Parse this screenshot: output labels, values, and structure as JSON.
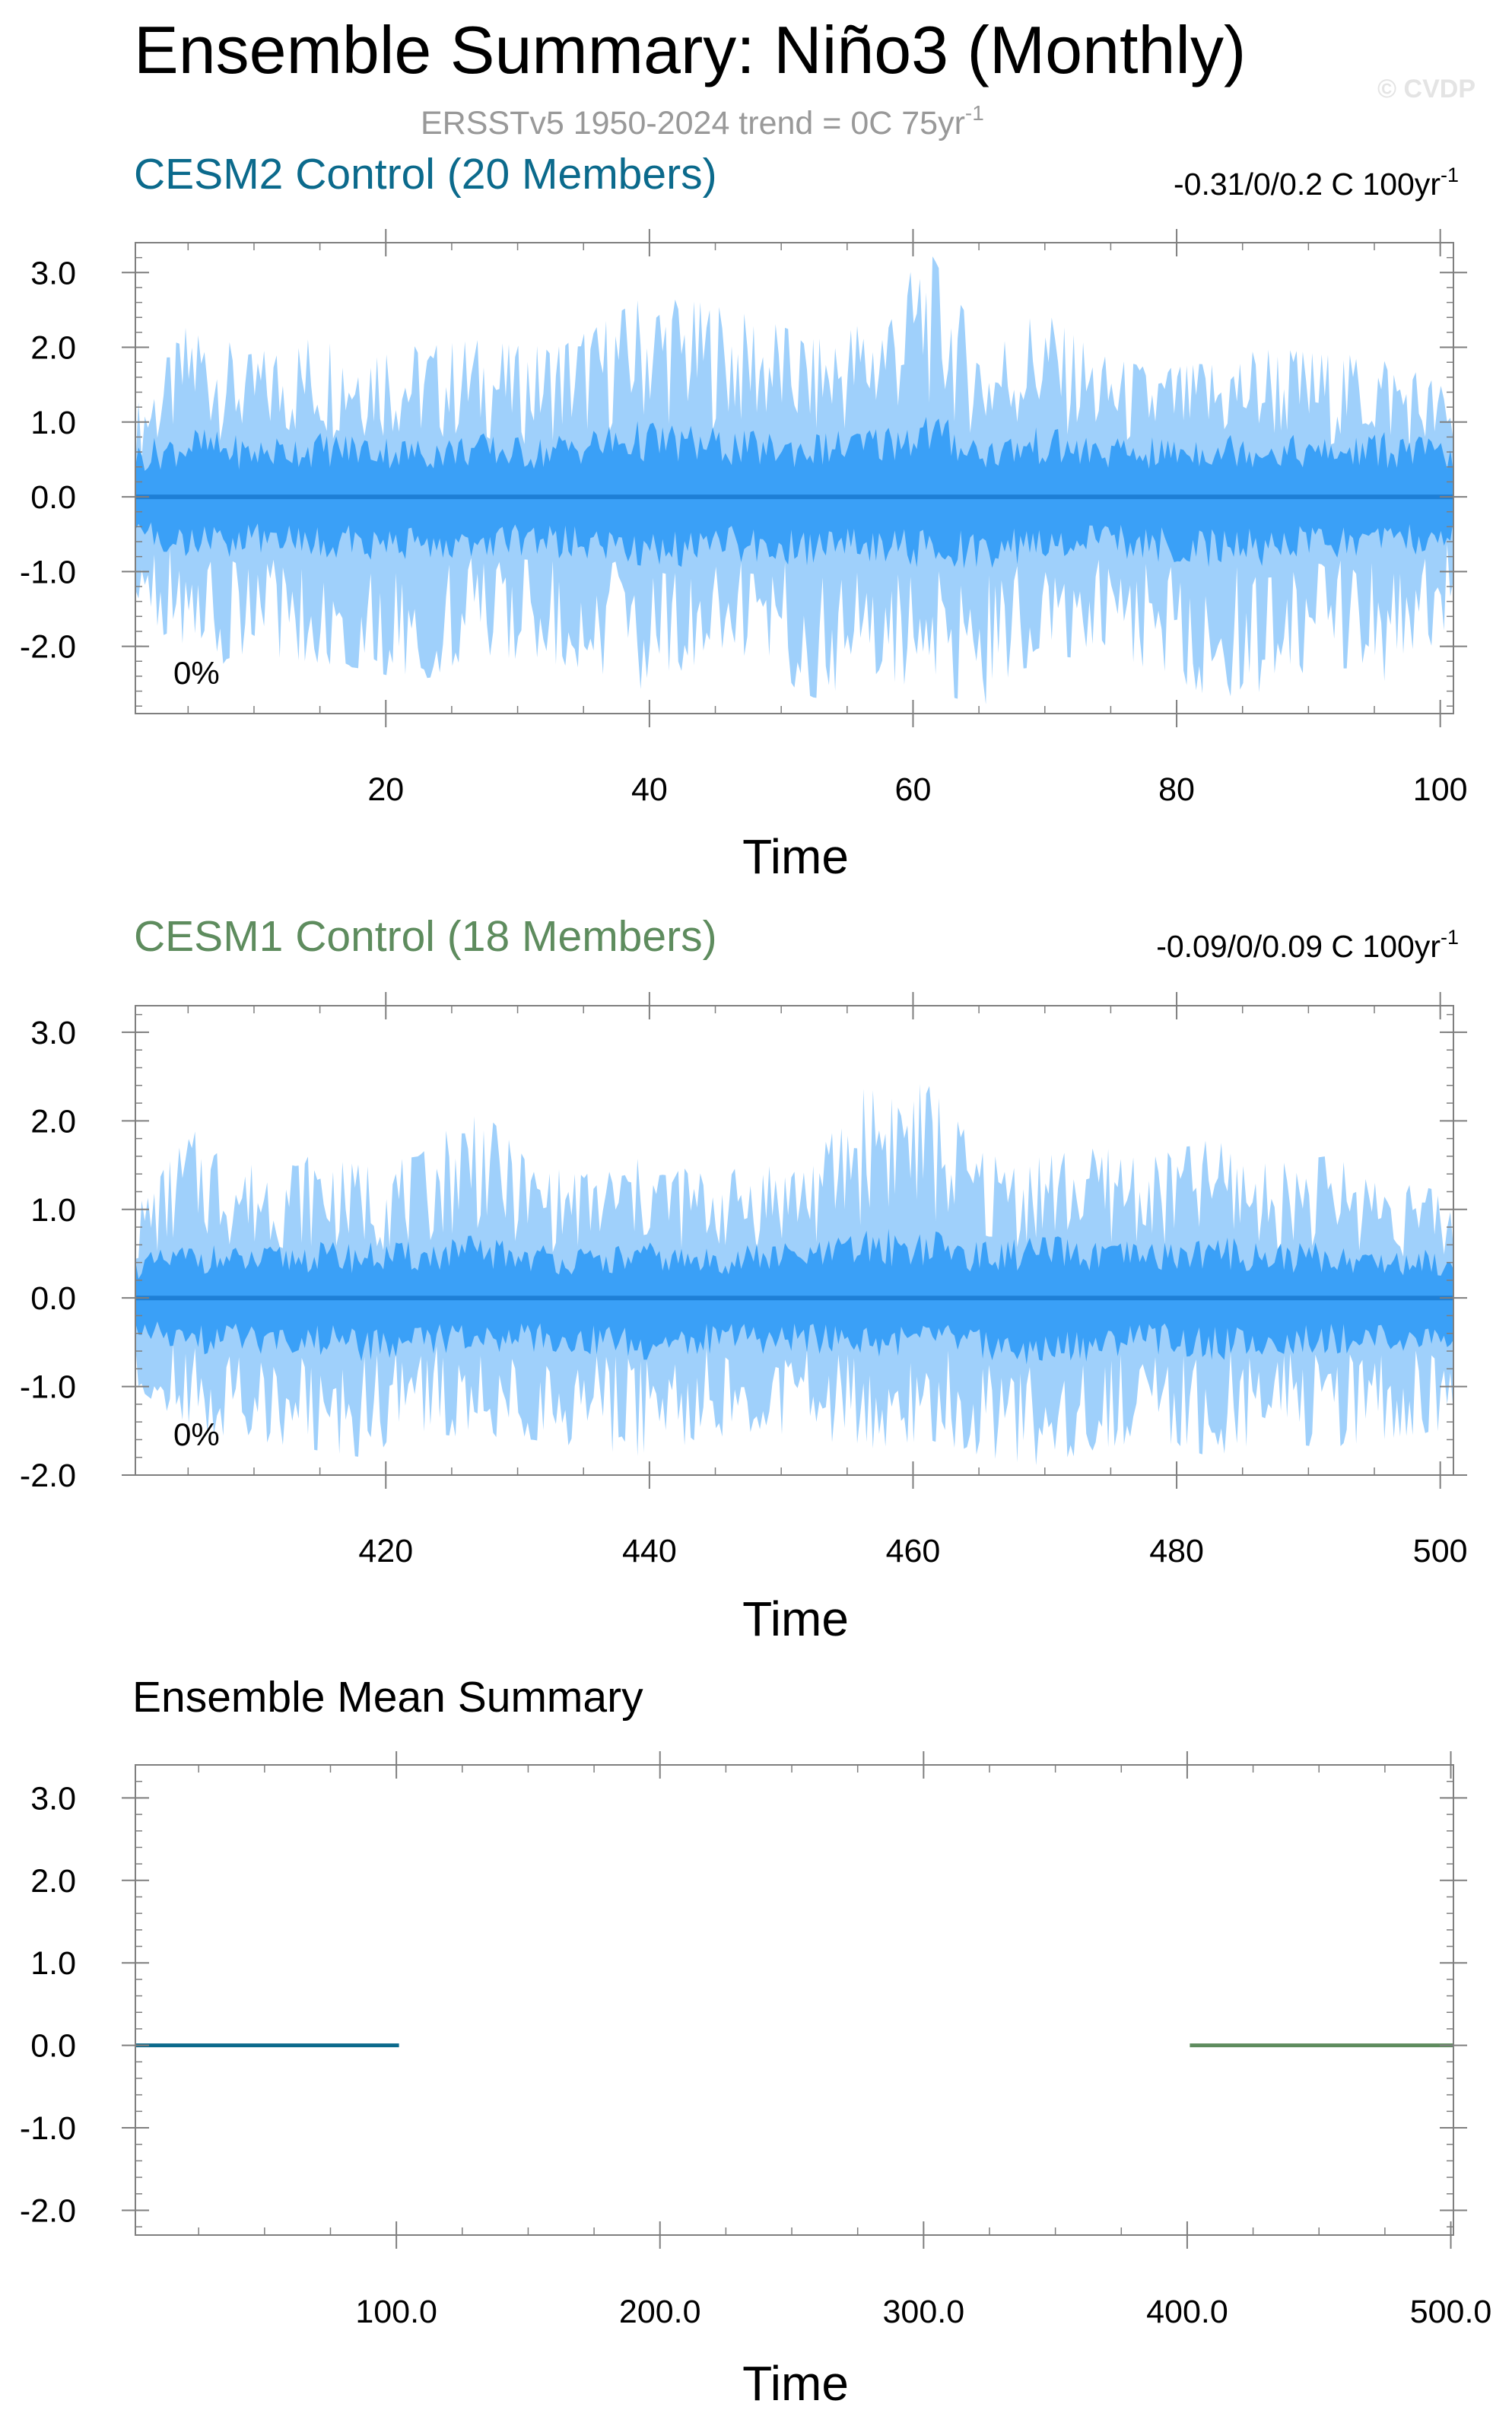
{
  "header": {
    "title": "Ensemble Summary: Niño3 (Monthly)",
    "subtitle": "ERSSTv5 1950-2024 trend = 0C 75yr",
    "subtitle_sup": "-1",
    "watermark": "© CVDP"
  },
  "colors": {
    "cesm2": "#0b6a8c",
    "cesm1": "#5e8c5e",
    "band_outer": "#9fd0fb",
    "band_inner": "#3aa0f7",
    "mean_line": "#1e7fd6",
    "frame": "#7f7f7f"
  },
  "chart_data": [
    {
      "type": "area",
      "title": "CESM2 Control (20 Members)",
      "right_label": "-0.31/0/0.2 C 100yr",
      "right_label_sup": "-1",
      "percent_label": "0%",
      "xlabel": "Time",
      "ylabel": "",
      "xlim": [
        1,
        101
      ],
      "ylim": [
        -2.9,
        3.4
      ],
      "x_ticks": [
        20,
        40,
        60,
        80,
        100
      ],
      "x_tick_labels": [
        "20",
        "40",
        "60",
        "80",
        "100"
      ],
      "y_ticks": [
        3.0,
        2.0,
        1.0,
        0.0,
        -1.0,
        -2.0
      ],
      "y_tick_labels": [
        "3.0",
        "2.0",
        "1.0",
        "0.0",
        "-1.0",
        "-2.0"
      ],
      "series": [
        {
          "role": "max_min_envelope",
          "x": [
            1,
            5.3,
            9.6,
            13.9,
            18.2,
            22.5,
            26.8,
            31.1,
            35.4,
            39.7,
            44,
            48.3,
            52.6,
            56.9,
            61.2,
            65.5,
            69.8,
            74.1,
            78.4,
            82.7,
            87,
            91.3,
            95.6,
            100,
            101
          ],
          "upper": [
            1.2,
            2.4,
            1.9,
            2.1,
            2.2,
            2.0,
            2.1,
            2.0,
            2.2,
            2.7,
            2.6,
            2.4,
            2.1,
            2.4,
            3.3,
            2.0,
            2.5,
            1.9,
            1.7,
            1.8,
            2.0,
            1.9,
            1.9,
            1.5,
            1.2
          ],
          "lower": [
            -1.3,
            -2.4,
            -2.1,
            -2.2,
            -2.3,
            -2.5,
            -2.1,
            -2.2,
            -2.3,
            -2.6,
            -2.2,
            -2.3,
            -2.7,
            -2.4,
            -2.6,
            -2.8,
            -2.1,
            -2.2,
            -2.3,
            -2.7,
            -2.6,
            -2.2,
            -2.5,
            -1.9,
            -1.5
          ]
        },
        {
          "role": "percentile_band",
          "x": [
            1,
            5.3,
            9.6,
            13.9,
            18.2,
            22.5,
            26.8,
            31.1,
            35.4,
            39.7,
            44,
            48.3,
            52.6,
            56.9,
            61.2,
            65.5,
            69.8,
            74.1,
            78.4,
            82.7,
            87,
            91.3,
            95.6,
            100,
            101
          ],
          "upper": [
            0.9,
            1.2,
            1.0,
            1.1,
            1.1,
            1.0,
            1.1,
            1.0,
            1.2,
            1.3,
            1.2,
            1.1,
            1.1,
            1.2,
            1.5,
            1.0,
            1.2,
            1.0,
            1.0,
            1.1,
            1.1,
            1.0,
            1.1,
            1.0,
            0.8
          ],
          "lower": [
            -0.8,
            -1.1,
            -1.0,
            -1.0,
            -1.1,
            -1.1,
            -1.0,
            -1.0,
            -1.1,
            -1.3,
            -1.1,
            -1.1,
            -1.3,
            -1.1,
            -1.2,
            -1.3,
            -1.0,
            -1.0,
            -1.1,
            -1.2,
            -1.2,
            -1.0,
            -1.1,
            -0.9,
            -0.8
          ]
        },
        {
          "role": "ensemble_mean",
          "x": [
            1,
            101
          ],
          "y": [
            0.0,
            0.0
          ]
        }
      ]
    },
    {
      "type": "area",
      "title": "CESM1 Control (18 Members)",
      "right_label": "-0.09/0/0.09 C 100yr",
      "right_label_sup": "-1",
      "percent_label": "0%",
      "xlabel": "Time",
      "ylabel": "",
      "xlim": [
        401,
        501
      ],
      "ylim": [
        -2.0,
        3.3
      ],
      "x_ticks": [
        420,
        440,
        460,
        480,
        500
      ],
      "x_tick_labels": [
        "420",
        "440",
        "460",
        "480",
        "500"
      ],
      "y_ticks": [
        3.0,
        2.0,
        1.0,
        0.0,
        -1.0,
        -2.0
      ],
      "y_tick_labels": [
        "3.0",
        "2.0",
        "1.0",
        "0.0",
        "-1.0",
        "-2.0"
      ],
      "series": [
        {
          "role": "max_min_envelope",
          "x": [
            401,
            405.3,
            409.6,
            413.9,
            418.2,
            422.5,
            426.8,
            431.1,
            435.4,
            439.7,
            444,
            448.3,
            452.6,
            456.9,
            461.2,
            465.5,
            469.8,
            474.1,
            478.4,
            482.7,
            487,
            491.3,
            495.6,
            500,
            501
          ],
          "upper": [
            1.0,
            1.9,
            1.5,
            1.6,
            1.5,
            1.6,
            2.2,
            1.5,
            1.4,
            1.6,
            1.4,
            1.5,
            1.6,
            2.5,
            2.4,
            1.6,
            1.6,
            1.7,
            1.6,
            1.8,
            1.5,
            1.6,
            1.4,
            1.2,
            1.0
          ],
          "lower": [
            -1.0,
            -1.5,
            -1.6,
            -1.7,
            -1.8,
            -1.5,
            -1.6,
            -1.6,
            -1.7,
            -1.8,
            -1.6,
            -1.5,
            -1.6,
            -1.7,
            -1.6,
            -1.8,
            -1.9,
            -1.7,
            -1.6,
            -1.8,
            -1.6,
            -1.7,
            -1.6,
            -1.5,
            -1.3
          ]
        },
        {
          "role": "percentile_band",
          "x": [
            401,
            405.3,
            409.6,
            413.9,
            418.2,
            422.5,
            426.8,
            431.1,
            435.4,
            439.7,
            444,
            448.3,
            452.6,
            456.9,
            461.2,
            465.5,
            469.8,
            474.1,
            478.4,
            482.7,
            487,
            491.3,
            495.6,
            500,
            501
          ],
          "upper": [
            0.6,
            0.8,
            0.7,
            0.8,
            0.8,
            0.8,
            0.9,
            0.8,
            0.7,
            0.8,
            0.7,
            0.8,
            0.8,
            1.0,
            1.0,
            0.8,
            0.9,
            0.8,
            0.8,
            0.9,
            0.8,
            0.8,
            0.7,
            0.7,
            0.6
          ],
          "lower": [
            -0.6,
            -0.8,
            -0.8,
            -0.8,
            -0.9,
            -0.8,
            -0.8,
            -0.8,
            -0.8,
            -0.9,
            -0.8,
            -0.8,
            -0.8,
            -0.9,
            -0.8,
            -0.9,
            -1.0,
            -0.9,
            -0.8,
            -0.9,
            -0.8,
            -0.8,
            -0.8,
            -0.7,
            -0.7
          ]
        },
        {
          "role": "ensemble_mean",
          "x": [
            401,
            501
          ],
          "y": [
            0.0,
            0.0
          ]
        }
      ]
    },
    {
      "type": "line",
      "title": "Ensemble Mean Summary",
      "xlabel": "Time",
      "ylabel": "",
      "xlim": [
        1,
        501
      ],
      "ylim": [
        -2.3,
        3.4
      ],
      "x_ticks": [
        100,
        200,
        300,
        400,
        500
      ],
      "x_tick_labels": [
        "100.0",
        "200.0",
        "300.0",
        "400.0",
        "500.0"
      ],
      "y_ticks": [
        3.0,
        2.0,
        1.0,
        0.0,
        -1.0,
        -2.0
      ],
      "y_tick_labels": [
        "3.0",
        "2.0",
        "1.0",
        "0.0",
        "-1.0",
        "-2.0"
      ],
      "series": [
        {
          "role": "cesm2_mean",
          "x": [
            1,
            101
          ],
          "y": [
            0.0,
            0.0
          ]
        },
        {
          "role": "cesm1_mean",
          "x": [
            401,
            501
          ],
          "y": [
            0.0,
            0.0
          ]
        }
      ]
    }
  ]
}
